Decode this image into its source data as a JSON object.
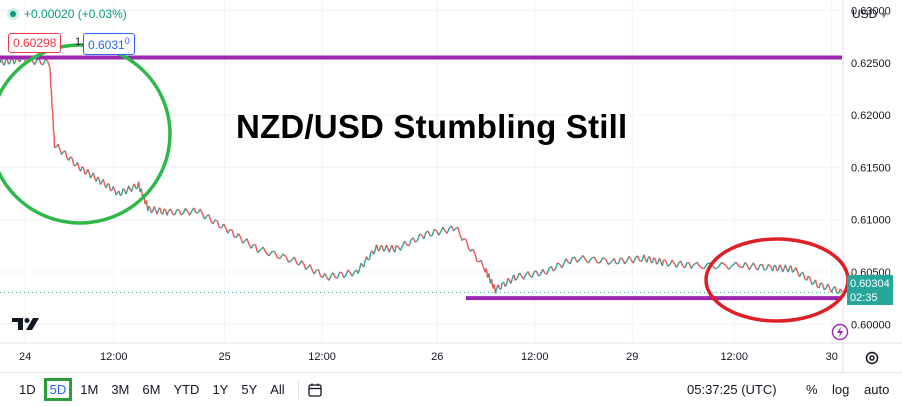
{
  "header": {
    "change_text": "+0.00020 (+0.03%)",
    "bid": "0.60298",
    "spread": "1.2",
    "ask": "0.6031",
    "ask_sup": "0",
    "currency": "USD"
  },
  "headline": "NZD/USD Stumbling Still",
  "last_price": {
    "price": "0.60304",
    "countdown": "02:35"
  },
  "bottom_bar": {
    "ranges": [
      "1D",
      "5D",
      "1M",
      "3M",
      "6M",
      "YTD",
      "1Y",
      "5Y",
      "All"
    ],
    "active_range": "5D",
    "time": "05:37:25 (UTC)",
    "percent_label": "%",
    "log_label": "log",
    "auto_label": "auto"
  },
  "colors": {
    "candle_up": "#26a69a",
    "candle_down": "#ef5350",
    "horizontal_line": "#9c27b0",
    "circle_green": "#2db84a",
    "circle_red": "#e01e26",
    "price_tag": "#26a69a"
  },
  "icons": [
    "tradingview-logo-icon",
    "goto-date-icon",
    "settings-icon",
    "bolt-icon",
    "chevron-down-icon"
  ],
  "chart_data": {
    "type": "line",
    "title": "NZD/USD Stumbling Still",
    "x_tick_labels": [
      "24",
      "12:00",
      "25",
      "12:00",
      "26",
      "12:00",
      "29",
      "12:00",
      "30"
    ],
    "y_tick_labels": [
      "0.63000",
      "0.62500",
      "0.62000",
      "0.61500",
      "0.61000",
      "0.60500",
      "0.60000"
    ],
    "ylim": [
      0.5985,
      0.631
    ],
    "grid": true,
    "legend": "none",
    "series": [
      {
        "x": [
          0,
          0.2,
          0.5,
          0.55,
          0.8,
          1.0,
          1.2,
          1.4,
          1.5,
          1.7,
          2.0,
          2.3,
          2.6,
          3.0,
          3.3,
          3.6,
          3.8,
          4.0,
          4.3,
          4.6,
          4.9,
          5.0,
          5.2,
          5.5,
          5.8,
          6.2,
          6.5,
          6.7,
          7.0,
          7.5,
          7.8,
          8.0,
          8.25,
          8.5
        ],
        "y": [
          0.625,
          0.6253,
          0.625,
          0.6172,
          0.615,
          0.6138,
          0.6125,
          0.6133,
          0.611,
          0.6107,
          0.6108,
          0.609,
          0.6072,
          0.606,
          0.6045,
          0.605,
          0.6073,
          0.6072,
          0.6086,
          0.6092,
          0.6052,
          0.6033,
          0.6045,
          0.605,
          0.6063,
          0.606,
          0.6063,
          0.6059,
          0.6056,
          0.6056,
          0.6054,
          0.6053,
          0.6038,
          0.6031
        ]
      }
    ],
    "horizontal_lines": [
      0.6255,
      0.6025
    ],
    "last_value": 0.60304
  }
}
